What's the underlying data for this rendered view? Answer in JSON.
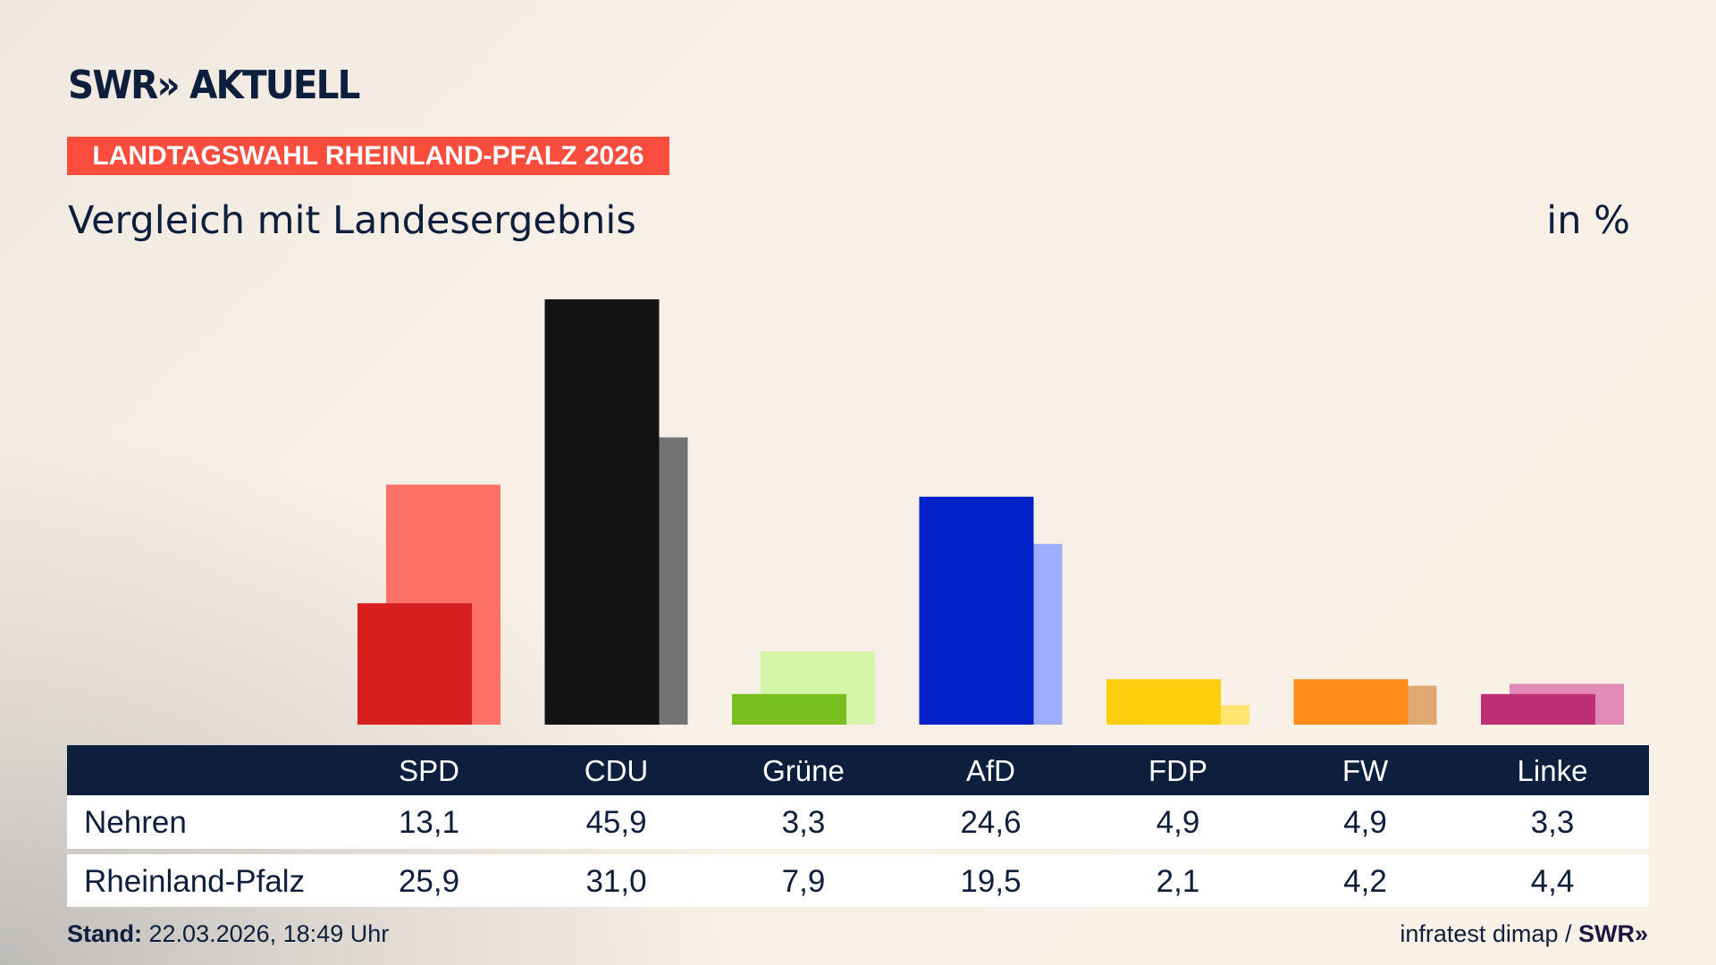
{
  "header": {
    "logo": "SWR» AKTUELL",
    "banner": "LANDTAGSWAHL RHEINLAND-PFALZ 2026",
    "subtitle": "Vergleich mit Landesergebnis",
    "unit": "in %"
  },
  "colors": {
    "banner": "#fb4d3d",
    "navy": "#0d1f3c"
  },
  "chart_data": {
    "type": "bar",
    "categories": [
      "SPD",
      "CDU",
      "Grüne",
      "AfD",
      "FDP",
      "FW",
      "Linke"
    ],
    "series": [
      {
        "name": "Nehren",
        "values": [
          13.1,
          45.9,
          3.3,
          24.6,
          4.9,
          4.9,
          3.3
        ],
        "colors": [
          "#d81f1f",
          "#131313",
          "#78be1e",
          "#0020c8",
          "#ffcf0f",
          "#ff8c1a",
          "#bd3075"
        ]
      },
      {
        "name": "Rheinland-Pfalz",
        "values": [
          25.9,
          31.0,
          7.9,
          19.5,
          2.1,
          4.2,
          4.4
        ],
        "colors": [
          "#ff7069",
          "#727272",
          "#d5f5a8",
          "#9eacff",
          "#ffe46f",
          "#e0a874",
          "#e28bb9"
        ]
      }
    ],
    "ylabel": "in %",
    "grid": false
  },
  "table": {
    "headers": [
      "SPD",
      "CDU",
      "Grüne",
      "AfD",
      "FDP",
      "FW",
      "Linke"
    ],
    "rows": [
      {
        "label": "Nehren",
        "values": [
          "13,1",
          "45,9",
          "3,3",
          "24,6",
          "4,9",
          "4,9",
          "3,3"
        ]
      },
      {
        "label": "Rheinland-Pfalz",
        "values": [
          "25,9",
          "31,0",
          "7,9",
          "19,5",
          "2,1",
          "4,2",
          "4,4"
        ]
      }
    ]
  },
  "footer": {
    "stand_label": "Stand:",
    "stand_value": "22.03.2026, 18:49 Uhr",
    "source": "infratest dimap /",
    "source_brand": "SWR»"
  }
}
